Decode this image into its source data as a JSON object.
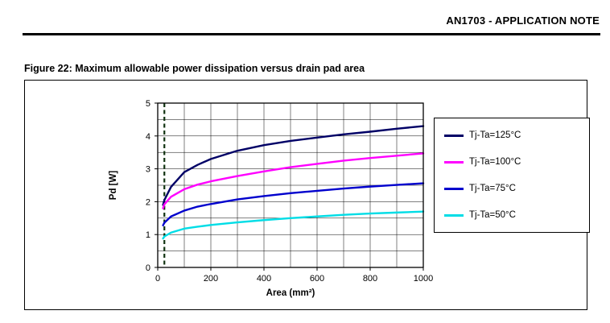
{
  "header": {
    "title": "AN1703 - APPLICATION NOTE"
  },
  "figure": {
    "caption": "Figure 22: Maximum allowable power dissipation versus drain pad area"
  },
  "chart_data": {
    "type": "line",
    "title": "",
    "xlabel": "Area (mm²)",
    "ylabel": "Pd [W]",
    "xlim": [
      0,
      1000
    ],
    "ylim": [
      0,
      5
    ],
    "x_ticks": [
      0,
      200,
      400,
      600,
      800,
      1000
    ],
    "y_ticks": [
      0,
      1,
      2,
      3,
      4,
      5
    ],
    "x_grid_step": 100,
    "y_grid_step": 0.5,
    "grid": true,
    "legend_position": "right",
    "dashed_marker_x": 25,
    "dashed_marker_color": "#113311",
    "x": [
      20,
      25,
      50,
      100,
      150,
      200,
      300,
      400,
      500,
      600,
      700,
      800,
      900,
      1000
    ],
    "series": [
      {
        "name": "Tj-Ta=125°C",
        "color": "#000066",
        "values": [
          1.9,
          2.05,
          2.45,
          2.9,
          3.12,
          3.3,
          3.55,
          3.72,
          3.85,
          3.95,
          4.05,
          4.13,
          4.22,
          4.3
        ]
      },
      {
        "name": "Tj-Ta=100°C",
        "color": "#FF00FF",
        "values": [
          1.8,
          1.92,
          2.15,
          2.38,
          2.52,
          2.62,
          2.78,
          2.92,
          3.05,
          3.15,
          3.25,
          3.33,
          3.4,
          3.47
        ]
      },
      {
        "name": "Tj-Ta=75°C",
        "color": "#0000CD",
        "values": [
          1.28,
          1.36,
          1.55,
          1.73,
          1.85,
          1.93,
          2.07,
          2.17,
          2.26,
          2.33,
          2.4,
          2.46,
          2.51,
          2.56
        ]
      },
      {
        "name": "Tj-Ta=50°C",
        "color": "#00DDE6",
        "values": [
          0.88,
          0.94,
          1.06,
          1.18,
          1.24,
          1.29,
          1.37,
          1.44,
          1.5,
          1.55,
          1.6,
          1.64,
          1.67,
          1.7
        ]
      }
    ]
  }
}
